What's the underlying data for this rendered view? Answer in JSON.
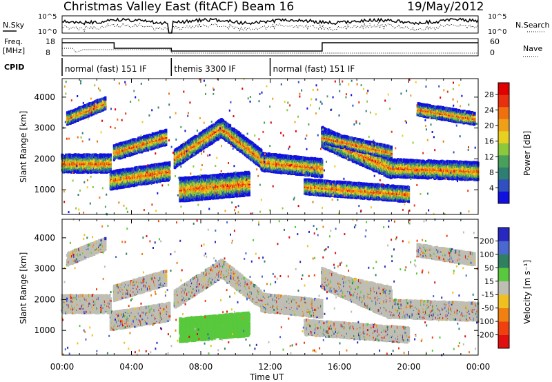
{
  "header": {
    "title": "Christmas Valley East (fitACF)",
    "beam": "Beam 16",
    "date": "19/May/2012"
  },
  "labels": {
    "nsky": "N.Sky",
    "nsearch": "N.Search",
    "freq_line1": "Freq.",
    "freq_line2": "[MHz]",
    "nave": "Nave",
    "cpid": "CPID",
    "noise_ticks_left": [
      "10^5",
      "10^0"
    ],
    "noise_ticks_right": [
      "10^5",
      "10^0"
    ],
    "freq_ticks": [
      "18",
      "8"
    ],
    "nave_ticks": [
      "60",
      "0"
    ]
  },
  "cpid_segments": [
    {
      "label": "normal (fast) 151 IF",
      "start_h": 0,
      "end_h": 6.3
    },
    {
      "label": "themis 3300 IF",
      "start_h": 6.3,
      "end_h": 12.0
    },
    {
      "label": "normal (fast) 151 IF",
      "start_h": 12.0,
      "end_h": 24.0
    }
  ],
  "chart_data": {
    "type": "heatmap",
    "xlabel": "Time UT",
    "x_ticks": [
      "00:00",
      "04:00",
      "08:00",
      "12:00",
      "16:00",
      "20:00",
      "00:00"
    ],
    "xlim_hours": [
      0,
      24
    ],
    "panels": [
      {
        "name": "power",
        "ylabel": "Slant Range [km]",
        "y_ticks": [
          1000,
          2000,
          3000,
          4000
        ],
        "ylim": [
          200,
          4600
        ],
        "colorbar": {
          "label": "Power [dB]",
          "ticks": [
            4,
            8,
            12,
            16,
            20,
            24,
            28
          ],
          "range": [
            0,
            31
          ],
          "colors": [
            "#1010e0",
            "#3050c0",
            "#2e7f72",
            "#49a05a",
            "#8cc83c",
            "#e8d020",
            "#f0a018",
            "#f07010",
            "#e83010",
            "#e00000"
          ]
        }
      },
      {
        "name": "velocity",
        "ylabel": "Slant Range [km]",
        "y_ticks": [
          1000,
          2000,
          3000,
          4000
        ],
        "ylim": [
          200,
          4600
        ],
        "colorbar": {
          "label": "Velocity [m s⁻¹]",
          "ticks": [
            "200",
            "100",
            "50",
            "15",
            "-15",
            "-50",
            "-100",
            "-200"
          ],
          "colors": [
            "#2828c0",
            "#4a68d0",
            "#2e8060",
            "#58c83c",
            "#bebeb4",
            "#f0c020",
            "#f08010",
            "#f04010",
            "#e01010"
          ]
        }
      }
    ],
    "echo_bands": [
      {
        "name": "main-band-a",
        "t0": 0.0,
        "t1": 2.8,
        "r0": 1850,
        "r1": 1850,
        "width": 260
      },
      {
        "name": "main-band-b",
        "t0": 2.8,
        "t1": 6.2,
        "r0": 1300,
        "r1": 1600,
        "width": 260
      },
      {
        "name": "upper-band-a",
        "t0": 0.3,
        "t1": 2.5,
        "r0": 3300,
        "r1": 3800,
        "width": 200
      },
      {
        "name": "upper-band-b",
        "t0": 3.0,
        "t1": 6.0,
        "r0": 2200,
        "r1": 2700,
        "width": 220
      },
      {
        "name": "arc-rise",
        "t0": 6.5,
        "t1": 9.2,
        "r0": 2000,
        "r1": 3000,
        "width": 260
      },
      {
        "name": "arc-fall",
        "t0": 9.2,
        "t1": 11.5,
        "r0": 3000,
        "r1": 2000,
        "width": 260
      },
      {
        "name": "low-band",
        "t0": 6.8,
        "t1": 10.8,
        "r0": 1000,
        "r1": 1200,
        "width": 340
      },
      {
        "name": "main-band-c",
        "t0": 11.5,
        "t1": 15.0,
        "r0": 1900,
        "r1": 1700,
        "width": 280
      },
      {
        "name": "main-band-d",
        "t0": 15.0,
        "t1": 19.0,
        "r0": 2700,
        "r1": 1700,
        "width": 300
      },
      {
        "name": "main-band-e",
        "t0": 19.0,
        "t1": 24.0,
        "r0": 1700,
        "r1": 1600,
        "width": 280
      },
      {
        "name": "upper-band-c",
        "t0": 15.0,
        "t1": 19.0,
        "r0": 2700,
        "r1": 2200,
        "width": 200
      },
      {
        "name": "low-band-b",
        "t0": 14.0,
        "t1": 20.0,
        "r0": 1100,
        "r1": 850,
        "width": 240
      },
      {
        "name": "upper-band-d",
        "t0": 20.5,
        "t1": 23.8,
        "r0": 3600,
        "r1": 3300,
        "width": 180
      }
    ]
  }
}
